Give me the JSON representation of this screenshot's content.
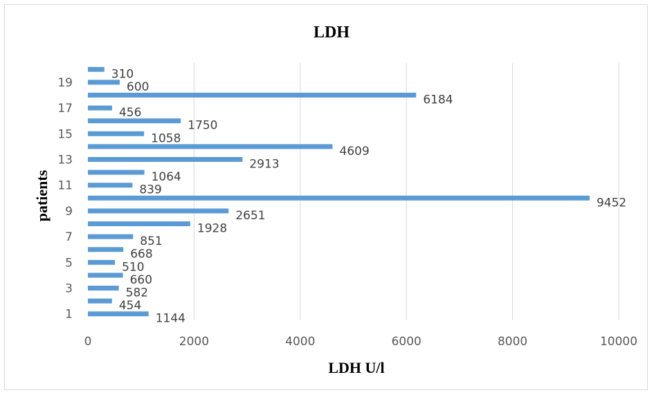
{
  "chart_data": {
    "type": "bar",
    "orientation": "horizontal",
    "title": "LDH",
    "xlabel": "LDH U/l",
    "ylabel": "patients",
    "categories": [
      "1",
      "2",
      "3",
      "4",
      "5",
      "6",
      "7",
      "8",
      "9",
      "10",
      "11",
      "12",
      "13",
      "14",
      "15",
      "16",
      "17",
      "18",
      "19",
      "20"
    ],
    "y_tick_labels": [
      "1",
      "3",
      "5",
      "7",
      "9",
      "11",
      "13",
      "15",
      "17",
      "19"
    ],
    "x_tick_labels": [
      "0",
      "2000",
      "4000",
      "6000",
      "8000",
      "10000"
    ],
    "x_ticks": [
      0,
      2000,
      4000,
      6000,
      8000,
      10000
    ],
    "values": [
      1144,
      454,
      582,
      660,
      510,
      668,
      851,
      1928,
      2651,
      9452,
      839,
      1064,
      2913,
      4609,
      1058,
      1750,
      456,
      6184,
      600,
      310
    ],
    "xlim": [
      0,
      10000
    ],
    "grid": true,
    "data_labels": true,
    "bar_color": "#5b9bd5"
  }
}
